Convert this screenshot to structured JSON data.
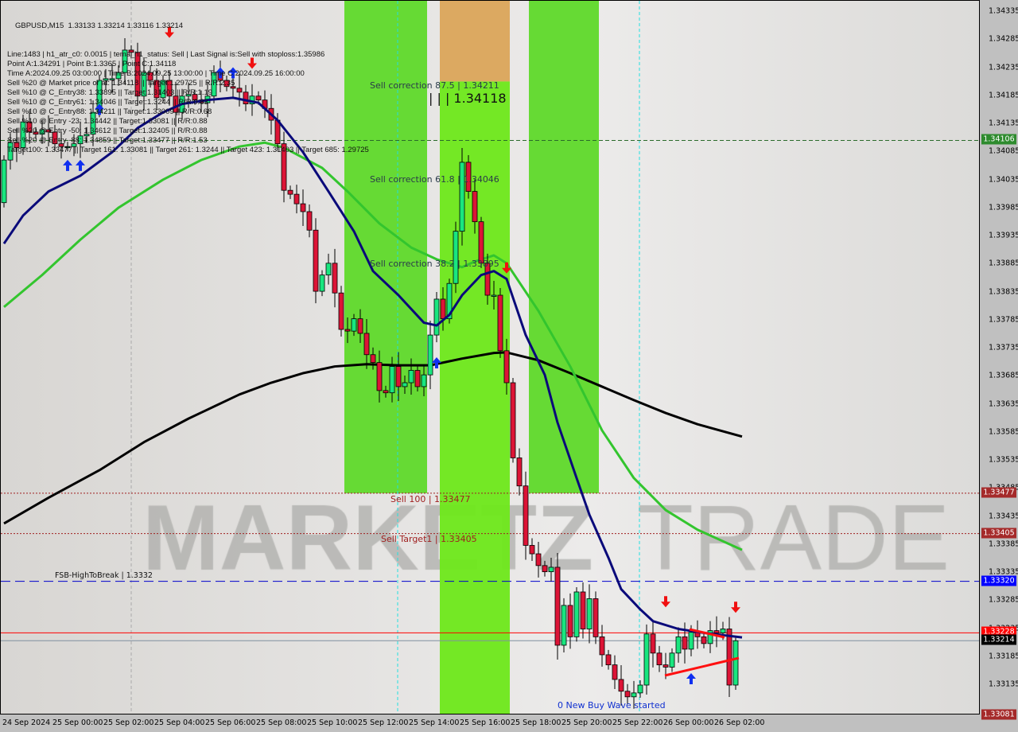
{
  "header": {
    "title": "GBPUSD,M15  1.33133 1.33214 1.33116 1.33214",
    "lines": [
      "Line:1483 | h1_atr_c0: 0.0015 | tema_h1_status: Sell | Last Signal is:Sell with stoploss:1.35986",
      "Point A:1.34291 | Point B:1.3365 | Point C:1.34118",
      "Time A:2024.09.25 03:00:00 | Time B:2024.09.25 13:00:00 | Time C:2024.09.25 16:00:00",
      "Sell %20 @ Market price or at: 1.34118 || Target:1.29725 || R/R:2.35",
      "Sell %10 @ C_Entry38: 1.33895 || Target:1.31403 || R/R:1.19",
      "Sell %10 @ C_Entry61: 1.34046 || Target:1.3244 || R/R:0.83",
      "Sell %10 @ C_Entry88: 1.34211 || Target:1.33009 || R/R:0.68",
      "Sell %10 @ Entry -23: 1.34442 || Target:1.33081 || R/R:0.88",
      "Sell %20 @ Entry -50: 1.34612 || Target:1.32405 || R/R:0.88",
      "Sell %20 @ Entry -88: 1.34859 || Target:1.33477 || R/R:1.53",
      "Target100: 1.33477 || Target 161: 1.33081 || Target 261: 1.3244 || Target 423: 1.31403 || Target 685: 1.29725"
    ]
  },
  "labels": {
    "corr875": "Sell correction 87.5 | 1.34211",
    "pointc": "| | | 1.34118",
    "corr618": "Sell correction 61.8 | 1.34046",
    "corr382": "Sell correction 38.2 | 1.33895",
    "sell100": "Sell 100 | 1.33477",
    "target1": "Sell Target1 | 1.33405",
    "fsb": "FSB-HighToBreak | 1.3332",
    "buywave": "0 New Buy Wave started"
  },
  "watermark": {
    "part1": "MARKETZ",
    "part2": "TRADE"
  },
  "colors": {
    "bull": "#19e67f",
    "bear": "#dc1436",
    "zone_green": "#5fd92a",
    "zone_light": "#6ee81a",
    "zone_orange": "#dba55a",
    "ma_fast": "#0a0a7a",
    "ma_mid": "#33c52e",
    "ma_slow": "#000000",
    "trail": "#ff4a10"
  },
  "chart_data": {
    "type": "candlestick",
    "symbol": "GBPUSD",
    "timeframe": "M15",
    "first_candle": "2024-09-24 22:00",
    "candle_minutes": 15,
    "ylim": [
      1.33081,
      1.3436
    ],
    "close": [
      1.34071,
      1.34102,
      1.34093,
      1.34139,
      1.34121,
      1.34117,
      1.34125,
      1.34121,
      1.341,
      1.34095,
      1.34095,
      1.341,
      1.34114,
      1.34117,
      1.34156,
      1.34213,
      1.34216,
      1.34216,
      1.34227,
      1.34267,
      1.34263,
      1.34185,
      1.34227,
      1.34213,
      1.34182,
      1.34213,
      1.34185,
      1.34156,
      1.34185,
      1.34188,
      1.34178,
      1.34173,
      1.34185,
      1.34227,
      1.34213,
      1.34202,
      1.34199,
      1.34192,
      1.34171,
      1.34185,
      1.34178,
      1.34163,
      1.34142,
      1.341,
      1.34017,
      1.3401,
      1.33993,
      1.33979,
      1.33946,
      1.33837,
      1.33866,
      1.33887,
      1.33834,
      1.33769,
      1.33766,
      1.33788,
      1.33762,
      1.33724,
      1.3371,
      1.3366,
      1.33656,
      1.33703,
      1.33667,
      1.33674,
      1.33696,
      1.33667,
      1.33688,
      1.33759,
      1.33823,
      1.33788,
      1.33851,
      1.33944,
      1.34067,
      1.34015,
      1.33961,
      1.33887,
      1.3383,
      1.3383,
      1.33731,
      1.33674,
      1.3354,
      1.3349,
      1.33384,
      1.33369,
      1.33348,
      1.33337,
      1.33345,
      1.33206,
      1.33277,
      1.33221,
      1.33301,
      1.33235,
      1.33289,
      1.33221,
      1.33189,
      1.33171,
      1.33145,
      1.33124,
      1.33114,
      1.33121,
      1.33135,
      1.33226,
      1.33192,
      1.33171,
      1.33167,
      1.33192,
      1.33221,
      1.33199,
      1.33229,
      1.33221,
      1.33209,
      1.33232,
      1.33228,
      1.33235,
      1.33135,
      1.33214
    ],
    "open_first": 1.33995,
    "ma_fast": [
      [
        0,
        1.33922
      ],
      [
        3,
        1.33972
      ],
      [
        7,
        1.34015
      ],
      [
        12,
        1.34043
      ],
      [
        17,
        1.34085
      ],
      [
        21,
        1.34128
      ],
      [
        25,
        1.34156
      ],
      [
        28,
        1.34171
      ],
      [
        32,
        1.34178
      ],
      [
        36,
        1.34182
      ],
      [
        40,
        1.34173
      ],
      [
        43,
        1.34142
      ],
      [
        47,
        1.34085
      ],
      [
        51,
        1.34015
      ],
      [
        55,
        1.33944
      ],
      [
        58,
        1.33873
      ],
      [
        62,
        1.3383
      ],
      [
        66,
        1.33781
      ],
      [
        68,
        1.33776
      ],
      [
        70,
        1.33795
      ],
      [
        72,
        1.3383
      ],
      [
        75,
        1.33866
      ],
      [
        77,
        1.33873
      ],
      [
        79,
        1.33859
      ],
      [
        82,
        1.33759
      ],
      [
        85,
        1.33688
      ],
      [
        87,
        1.33603
      ],
      [
        90,
        1.33504
      ],
      [
        92,
        1.33439
      ],
      [
        95,
        1.33362
      ],
      [
        97,
        1.33306
      ],
      [
        100,
        1.3327
      ],
      [
        102,
        1.33249
      ],
      [
        106,
        1.33235
      ],
      [
        110,
        1.33228
      ],
      [
        116,
        1.3322
      ]
    ],
    "ma_mid": [
      [
        0,
        1.33809
      ],
      [
        6,
        1.33866
      ],
      [
        12,
        1.33929
      ],
      [
        18,
        1.33986
      ],
      [
        25,
        1.34036
      ],
      [
        31,
        1.34071
      ],
      [
        37,
        1.34095
      ],
      [
        41,
        1.34102
      ],
      [
        44,
        1.34093
      ],
      [
        50,
        1.34057
      ],
      [
        54,
        1.34015
      ],
      [
        59,
        1.33958
      ],
      [
        64,
        1.33915
      ],
      [
        68,
        1.33894
      ],
      [
        72,
        1.3388
      ],
      [
        74,
        1.3389
      ],
      [
        77,
        1.33901
      ],
      [
        79,
        1.33887
      ],
      [
        84,
        1.33802
      ],
      [
        89,
        1.33703
      ],
      [
        94,
        1.33589
      ],
      [
        99,
        1.33504
      ],
      [
        104,
        1.33447
      ],
      [
        109,
        1.33412
      ],
      [
        116,
        1.33376
      ]
    ],
    "ma_slow": [
      [
        0,
        1.33423
      ],
      [
        7,
        1.33469
      ],
      [
        15,
        1.33518
      ],
      [
        22,
        1.33568
      ],
      [
        29,
        1.3361
      ],
      [
        37,
        1.33653
      ],
      [
        42,
        1.33674
      ],
      [
        47,
        1.33691
      ],
      [
        52,
        1.33703
      ],
      [
        57,
        1.33707
      ],
      [
        62,
        1.33705
      ],
      [
        67,
        1.33705
      ],
      [
        72,
        1.33717
      ],
      [
        77,
        1.33727
      ],
      [
        79,
        1.33728
      ],
      [
        84,
        1.33714
      ],
      [
        89,
        1.33691
      ],
      [
        94,
        1.33667
      ],
      [
        99,
        1.33643
      ],
      [
        104,
        1.3362
      ],
      [
        109,
        1.336
      ],
      [
        116,
        1.33578
      ]
    ],
    "zones": [
      {
        "from": 54,
        "to": 66,
        "top": 1.3436,
        "bottom": 1.33477,
        "color": "zone_green"
      },
      {
        "from": 69,
        "to": 79,
        "top": 1.3436,
        "bottom": 1.34211,
        "color": "zone_orange"
      },
      {
        "from": 69,
        "to": 79,
        "top": 1.34211,
        "bottom": 1.33081,
        "color": "zone_light"
      },
      {
        "from": 83,
        "to": 93,
        "top": 1.3436,
        "bottom": 1.33477,
        "color": "zone_green"
      }
    ],
    "hlines": [
      {
        "price": 1.34106,
        "color": "#2a6a2a",
        "style": "dash"
      },
      {
        "price": 1.33477,
        "color": "#a02020",
        "style": "dot"
      },
      {
        "price": 1.33405,
        "color": "#a02020",
        "style": "dot"
      },
      {
        "price": 1.3332,
        "color": "#0000cc",
        "style": "longdash"
      },
      {
        "price": 1.33228,
        "color": "#ff0000",
        "style": "solid"
      },
      {
        "price": 1.33214,
        "color": "#8090a0",
        "style": "solid"
      },
      {
        "price": 1.33081,
        "color": "#8b2020",
        "style": "dot"
      }
    ],
    "buy_arrows": [
      [
        10,
        1.3406
      ],
      [
        12,
        1.3406
      ],
      [
        15,
        1.3416
      ],
      [
        34,
        1.34225
      ],
      [
        36,
        1.34225
      ],
      [
        68,
        1.33708
      ],
      [
        108,
        1.33145
      ],
      [
        116,
        1.33055
      ]
    ],
    "sell_arrows": [
      [
        26,
        1.343
      ],
      [
        39,
        1.34245
      ],
      [
        79,
        1.3388
      ],
      [
        104,
        1.33285
      ],
      [
        115,
        1.33275
      ]
    ],
    "price_ticks": [
      1.34335,
      1.34285,
      1.34235,
      1.34185,
      1.34135,
      1.34085,
      1.34035,
      1.33985,
      1.33935,
      1.33885,
      1.33835,
      1.33785,
      1.33735,
      1.33685,
      1.33635,
      1.33585,
      1.33535,
      1.33485,
      1.33435,
      1.33385,
      1.33335,
      1.33285,
      1.33235,
      1.33185,
      1.33135
    ],
    "price_tags": [
      {
        "price": 1.34106,
        "text": "1.34106",
        "bg": "#2e8b2e"
      },
      {
        "price": 1.33477,
        "text": "1.33477",
        "bg": "#a52a2a"
      },
      {
        "price": 1.33405,
        "text": "1.33405",
        "bg": "#a52a2a"
      },
      {
        "price": 1.3332,
        "text": "1.33320",
        "bg": "#0000ff"
      },
      {
        "price": 1.33228,
        "text": "1.33228",
        "bg": "#ff0000"
      },
      {
        "price": 1.33214,
        "text": "1.33214",
        "bg": "#000000"
      },
      {
        "price": 1.33081,
        "text": "1.33081",
        "bg": "#a52a2a"
      }
    ],
    "time_labels": [
      "24 Sep 2024",
      "25 Sep 00:00",
      "25 Sep 02:00",
      "25 Sep 04:00",
      "25 Sep 06:00",
      "25 Sep 08:00",
      "25 Sep 10:00",
      "25 Sep 12:00",
      "25 Sep 14:00",
      "25 Sep 16:00",
      "25 Sep 18:00",
      "25 Sep 20:00",
      "25 Sep 22:00",
      "26 Sep 00:00",
      "26 Sep 02:00"
    ]
  }
}
